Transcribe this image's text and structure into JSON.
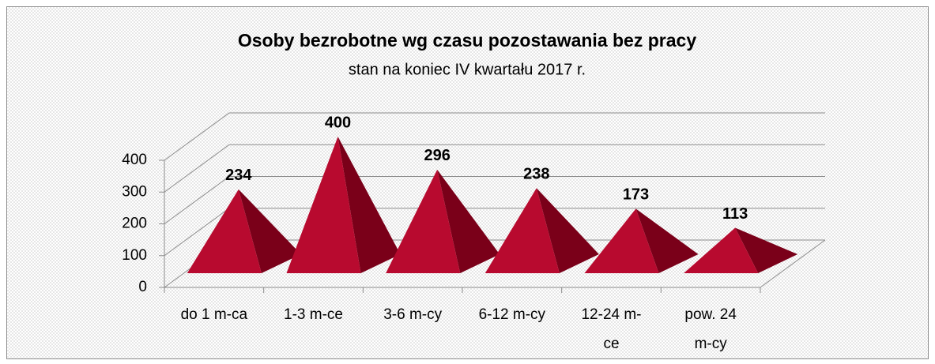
{
  "chart_data": {
    "type": "pyramid",
    "title": "Osoby bezrobotne wg czasu pozostawania bez pracy",
    "subtitle": "stan na koniec IV kwartału 2017 r.",
    "categories": [
      "do 1 m-ca",
      "1-3 m-ce",
      "3-6 m-cy",
      "6-12 m-cy",
      "12-24 m-ce",
      "pow. 24 m-cy"
    ],
    "values": [
      234,
      400,
      296,
      238,
      173,
      113
    ],
    "color": "#b80a2f",
    "shade": "#7a0019",
    "ylim": [
      0,
      400
    ],
    "yticks": [
      0,
      100,
      200,
      300,
      400
    ],
    "grid": true
  }
}
